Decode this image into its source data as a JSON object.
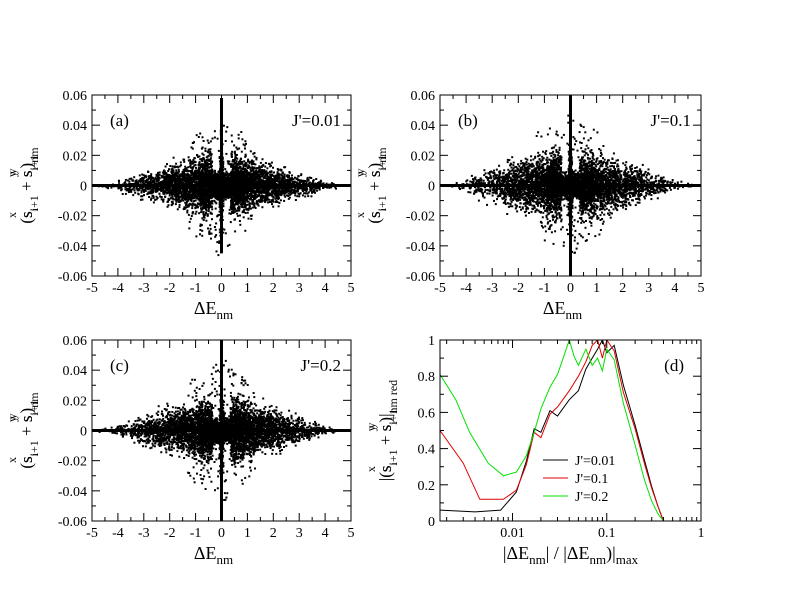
{
  "chart_data": [
    {
      "type": "scatter",
      "panel_label": "(a)",
      "annotation": "J'=0.01",
      "xlim": [
        -5,
        5
      ],
      "ylim": [
        -0.06,
        0.06
      ],
      "xticks": [
        -5,
        -4,
        -3,
        -2,
        -1,
        0,
        1,
        2,
        3,
        4,
        5
      ],
      "yticks": [
        -0.06,
        -0.04,
        -0.02,
        0,
        0.02,
        0.04,
        0.06
      ],
      "envelope": {
        "x": [
          -5,
          -4,
          -3,
          -2,
          -1,
          -0.5,
          -0.1,
          0.1,
          0.5,
          1,
          2,
          3,
          4,
          5
        ],
        "ymax": [
          0.0,
          0.004,
          0.01,
          0.016,
          0.021,
          0.024,
          0.03,
          0.03,
          0.024,
          0.021,
          0.016,
          0.01,
          0.004,
          0.0
        ]
      },
      "spike": {
        "x": 0.0,
        "ymin": -0.045,
        "ymax": 0.058
      },
      "seed": 11
    },
    {
      "type": "scatter",
      "panel_label": "(b)",
      "annotation": "J'=0.1",
      "xlim": [
        -5,
        5
      ],
      "ylim": [
        -0.06,
        0.06
      ],
      "xticks": [
        -5,
        -4,
        -3,
        -2,
        -1,
        0,
        1,
        2,
        3,
        4,
        5
      ],
      "yticks": [
        -0.06,
        -0.04,
        -0.02,
        0,
        0.02,
        0.04,
        0.06
      ],
      "envelope": {
        "x": [
          -5,
          -4,
          -3,
          -2,
          -1,
          -0.5,
          -0.1,
          0.1,
          0.5,
          1,
          2,
          3,
          4,
          5
        ],
        "ymax": [
          0.0,
          0.006,
          0.014,
          0.02,
          0.023,
          0.025,
          0.03,
          0.03,
          0.025,
          0.023,
          0.019,
          0.012,
          0.004,
          0.0
        ]
      },
      "spike": {
        "x": 0.0,
        "ymin": -0.06,
        "ymax": 0.06
      },
      "seed": 23
    },
    {
      "type": "scatter",
      "panel_label": "(c)",
      "annotation": "J'=0.2",
      "xlim": [
        -5,
        5
      ],
      "ylim": [
        -0.06,
        0.06
      ],
      "xticks": [
        -5,
        -4,
        -3,
        -2,
        -1,
        0,
        1,
        2,
        3,
        4,
        5
      ],
      "yticks": [
        -0.06,
        -0.04,
        -0.02,
        0,
        0.02,
        0.04,
        0.06
      ],
      "envelope": {
        "x": [
          -5,
          -4,
          -3,
          -2,
          -1,
          -0.5,
          -0.1,
          0.1,
          0.5,
          1,
          2,
          3,
          4,
          5
        ],
        "ymax": [
          0.0,
          0.004,
          0.012,
          0.018,
          0.022,
          0.025,
          0.03,
          0.03,
          0.025,
          0.022,
          0.017,
          0.011,
          0.004,
          0.0
        ]
      },
      "spike": {
        "x": 0.0,
        "ymin": -0.06,
        "ymax": 0.06
      },
      "seed": 37
    },
    {
      "type": "line",
      "panel_label": "(d)",
      "xscale": "log",
      "xlim": [
        0.0017,
        1
      ],
      "ylim": [
        0,
        1
      ],
      "xticks": [
        0.01,
        0.1,
        1
      ],
      "yticks": [
        0,
        0.2,
        0.4,
        0.6,
        0.8,
        1
      ],
      "legend_position": "bottom-center",
      "series": [
        {
          "name": "J'=0.01",
          "color": "#000000",
          "x": [
            0.0017,
            0.004,
            0.0075,
            0.011,
            0.014,
            0.017,
            0.02,
            0.025,
            0.03,
            0.04,
            0.05,
            0.06,
            0.07,
            0.08,
            0.09,
            0.1,
            0.12,
            0.15,
            0.2,
            0.25,
            0.3,
            0.35,
            0.4
          ],
          "y": [
            0.06,
            0.05,
            0.06,
            0.16,
            0.33,
            0.51,
            0.49,
            0.61,
            0.58,
            0.67,
            0.72,
            0.84,
            0.9,
            0.95,
            1.0,
            0.93,
            0.97,
            0.75,
            0.53,
            0.34,
            0.19,
            0.08,
            0.0
          ]
        },
        {
          "name": "J'=0.1",
          "color": "#e00000",
          "x": [
            0.0017,
            0.003,
            0.0045,
            0.008,
            0.011,
            0.014,
            0.017,
            0.02,
            0.025,
            0.03,
            0.04,
            0.05,
            0.06,
            0.07,
            0.08,
            0.09,
            0.1,
            0.12,
            0.15,
            0.2,
            0.25,
            0.3,
            0.35,
            0.4
          ],
          "y": [
            0.5,
            0.32,
            0.12,
            0.12,
            0.17,
            0.31,
            0.49,
            0.46,
            0.59,
            0.63,
            0.72,
            0.8,
            0.88,
            0.97,
            1.0,
            0.9,
            1.0,
            0.94,
            0.71,
            0.51,
            0.32,
            0.18,
            0.08,
            0.0
          ]
        },
        {
          "name": "J'=0.2",
          "color": "#00e000",
          "x": [
            0.0017,
            0.0025,
            0.0035,
            0.0055,
            0.008,
            0.011,
            0.014,
            0.017,
            0.02,
            0.025,
            0.03,
            0.035,
            0.04,
            0.045,
            0.05,
            0.06,
            0.07,
            0.08,
            0.09,
            0.1,
            0.12,
            0.15,
            0.2,
            0.25,
            0.3,
            0.35,
            0.4
          ],
          "y": [
            0.81,
            0.67,
            0.49,
            0.32,
            0.25,
            0.27,
            0.36,
            0.49,
            0.62,
            0.74,
            0.81,
            0.91,
            1.0,
            0.91,
            0.86,
            0.95,
            0.86,
            0.9,
            0.83,
            0.95,
            0.89,
            0.65,
            0.42,
            0.23,
            0.11,
            0.04,
            0.0
          ]
        }
      ]
    }
  ],
  "labels": {
    "a_b_c_x_base": "ΔE",
    "a_b_c_x_sub": "nm",
    "d_x_main": "|ΔE",
    "d_x_sub1": "nm",
    "d_x_mid": "| / |ΔE",
    "d_x_sub2": "nm",
    "d_x_sub3": "max",
    "y_open": "(s",
    "y_sub_i": "i",
    "y_sup_x": "x",
    "y_s": "s",
    "y_sub_ip1": "i+1",
    "y_plus": " + s",
    "y_sup_y": "y",
    "y_close": ")",
    "y_sub_nm": "nm",
    "d_y_open": "|(s",
    "d_y_close": ")|",
    "d_y_sub": "nm red"
  }
}
